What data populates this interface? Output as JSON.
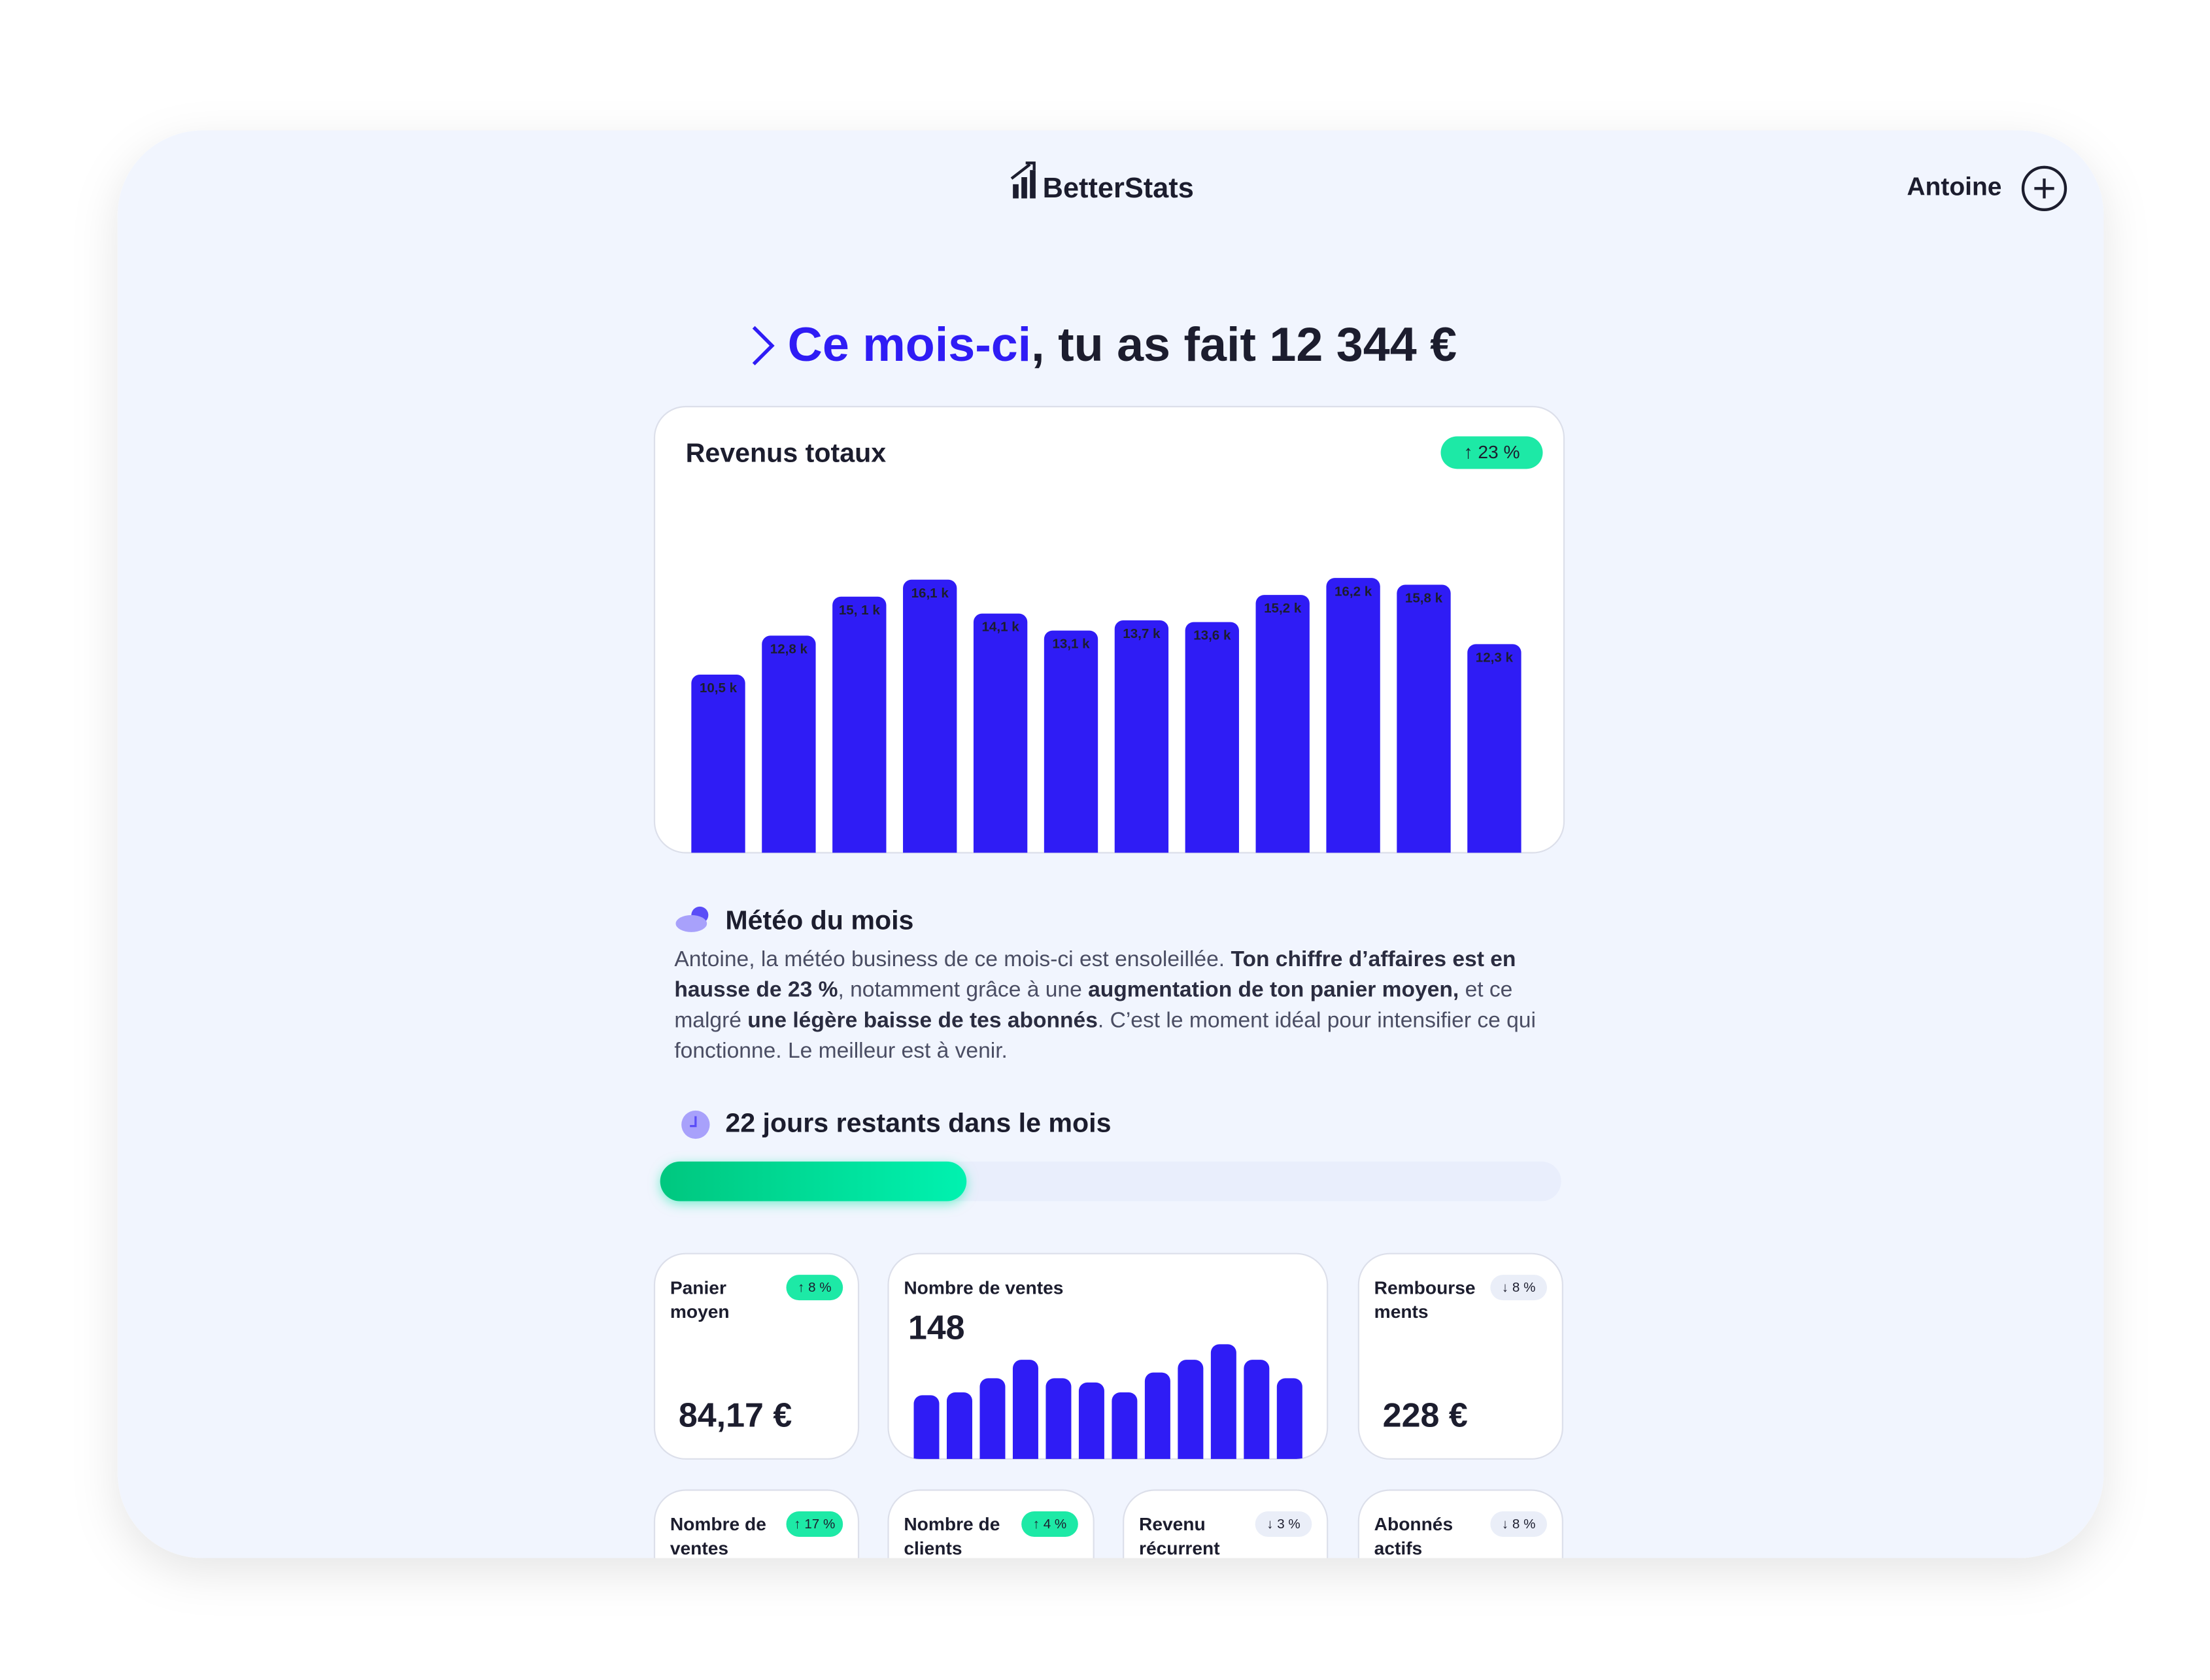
{
  "header": {
    "logo": "BetterStats",
    "user": "Antoine"
  },
  "headline": {
    "highlight": "Ce mois-ci",
    "rest": ", tu as fait 12 344 €"
  },
  "revenue_chart": {
    "type": "bar",
    "title": "Revenus totaux",
    "badge": "↑ 23 %",
    "color": "#2f1cf5",
    "values": [
      10.5,
      12.8,
      15.1,
      16.1,
      14.1,
      13.1,
      13.7,
      13.6,
      15.2,
      16.2,
      15.8,
      12.3
    ],
    "value_labels": [
      "10,5 k",
      "12,8 k",
      "15, 1 k",
      "16,1 k",
      "14,1 k",
      "13,1 k",
      "13,7 k",
      "13,6 k",
      "15,2 k",
      "16,2 k",
      "15,8 k",
      "12,3 k"
    ]
  },
  "weather": {
    "title": "Météo du mois",
    "lines": [
      [
        {
          "text": "Antoine, la météo business de ce mois-ci est ensoleillée. ",
          "bold": false
        },
        {
          "text": "Ton chiffre d’affaires est en",
          "bold": true
        }
      ],
      [
        {
          "text": "hausse de 23 %",
          "bold": true
        },
        {
          "text": ", notamment grâce à une ",
          "bold": false
        },
        {
          "text": "augmentation de ton panier moyen,",
          "bold": true
        },
        {
          "text": " et ce",
          "bold": false
        }
      ],
      [
        {
          "text": "malgré ",
          "bold": false
        },
        {
          "text": "une légère baisse de tes abonnés",
          "bold": true
        },
        {
          "text": ". C’est le moment idéal pour intensifier ce qui",
          "bold": false
        }
      ],
      [
        {
          "text": "fonctionne. Le meilleur est à venir.",
          "bold": false
        }
      ]
    ]
  },
  "days": {
    "label": "22 jours restants dans le mois",
    "progress": 0.34
  },
  "kpis": [
    {
      "label_lines": [
        "Panier",
        "moyen"
      ],
      "badge": "↑ 8 %",
      "trend": "up",
      "value": "84,17 €"
    },
    {
      "label_lines": [
        "Nombre de ventes"
      ],
      "value": "148",
      "type": "bar",
      "color": "#2f1cf5",
      "values": [
        45,
        47,
        57,
        70,
        57,
        54,
        47,
        61,
        70,
        81,
        70,
        57
      ]
    },
    {
      "label_lines": [
        "Rembourse",
        "ments"
      ],
      "badge": "↓ 8 %",
      "trend": "down",
      "value": "228 €"
    },
    {
      "label_lines": [
        "Nombre de",
        "ventes"
      ],
      "badge": "↑ 17 %",
      "trend": "up"
    },
    {
      "label_lines": [
        "Nombre de",
        "clients"
      ],
      "badge": "↑ 4 %",
      "trend": "up"
    },
    {
      "label_lines": [
        "Revenu",
        "récurrent"
      ],
      "badge": "↓ 3 %",
      "trend": "down"
    },
    {
      "label_lines": [
        "Abonnés",
        "actifs"
      ],
      "badge": "↓ 8 %",
      "trend": "down"
    }
  ]
}
